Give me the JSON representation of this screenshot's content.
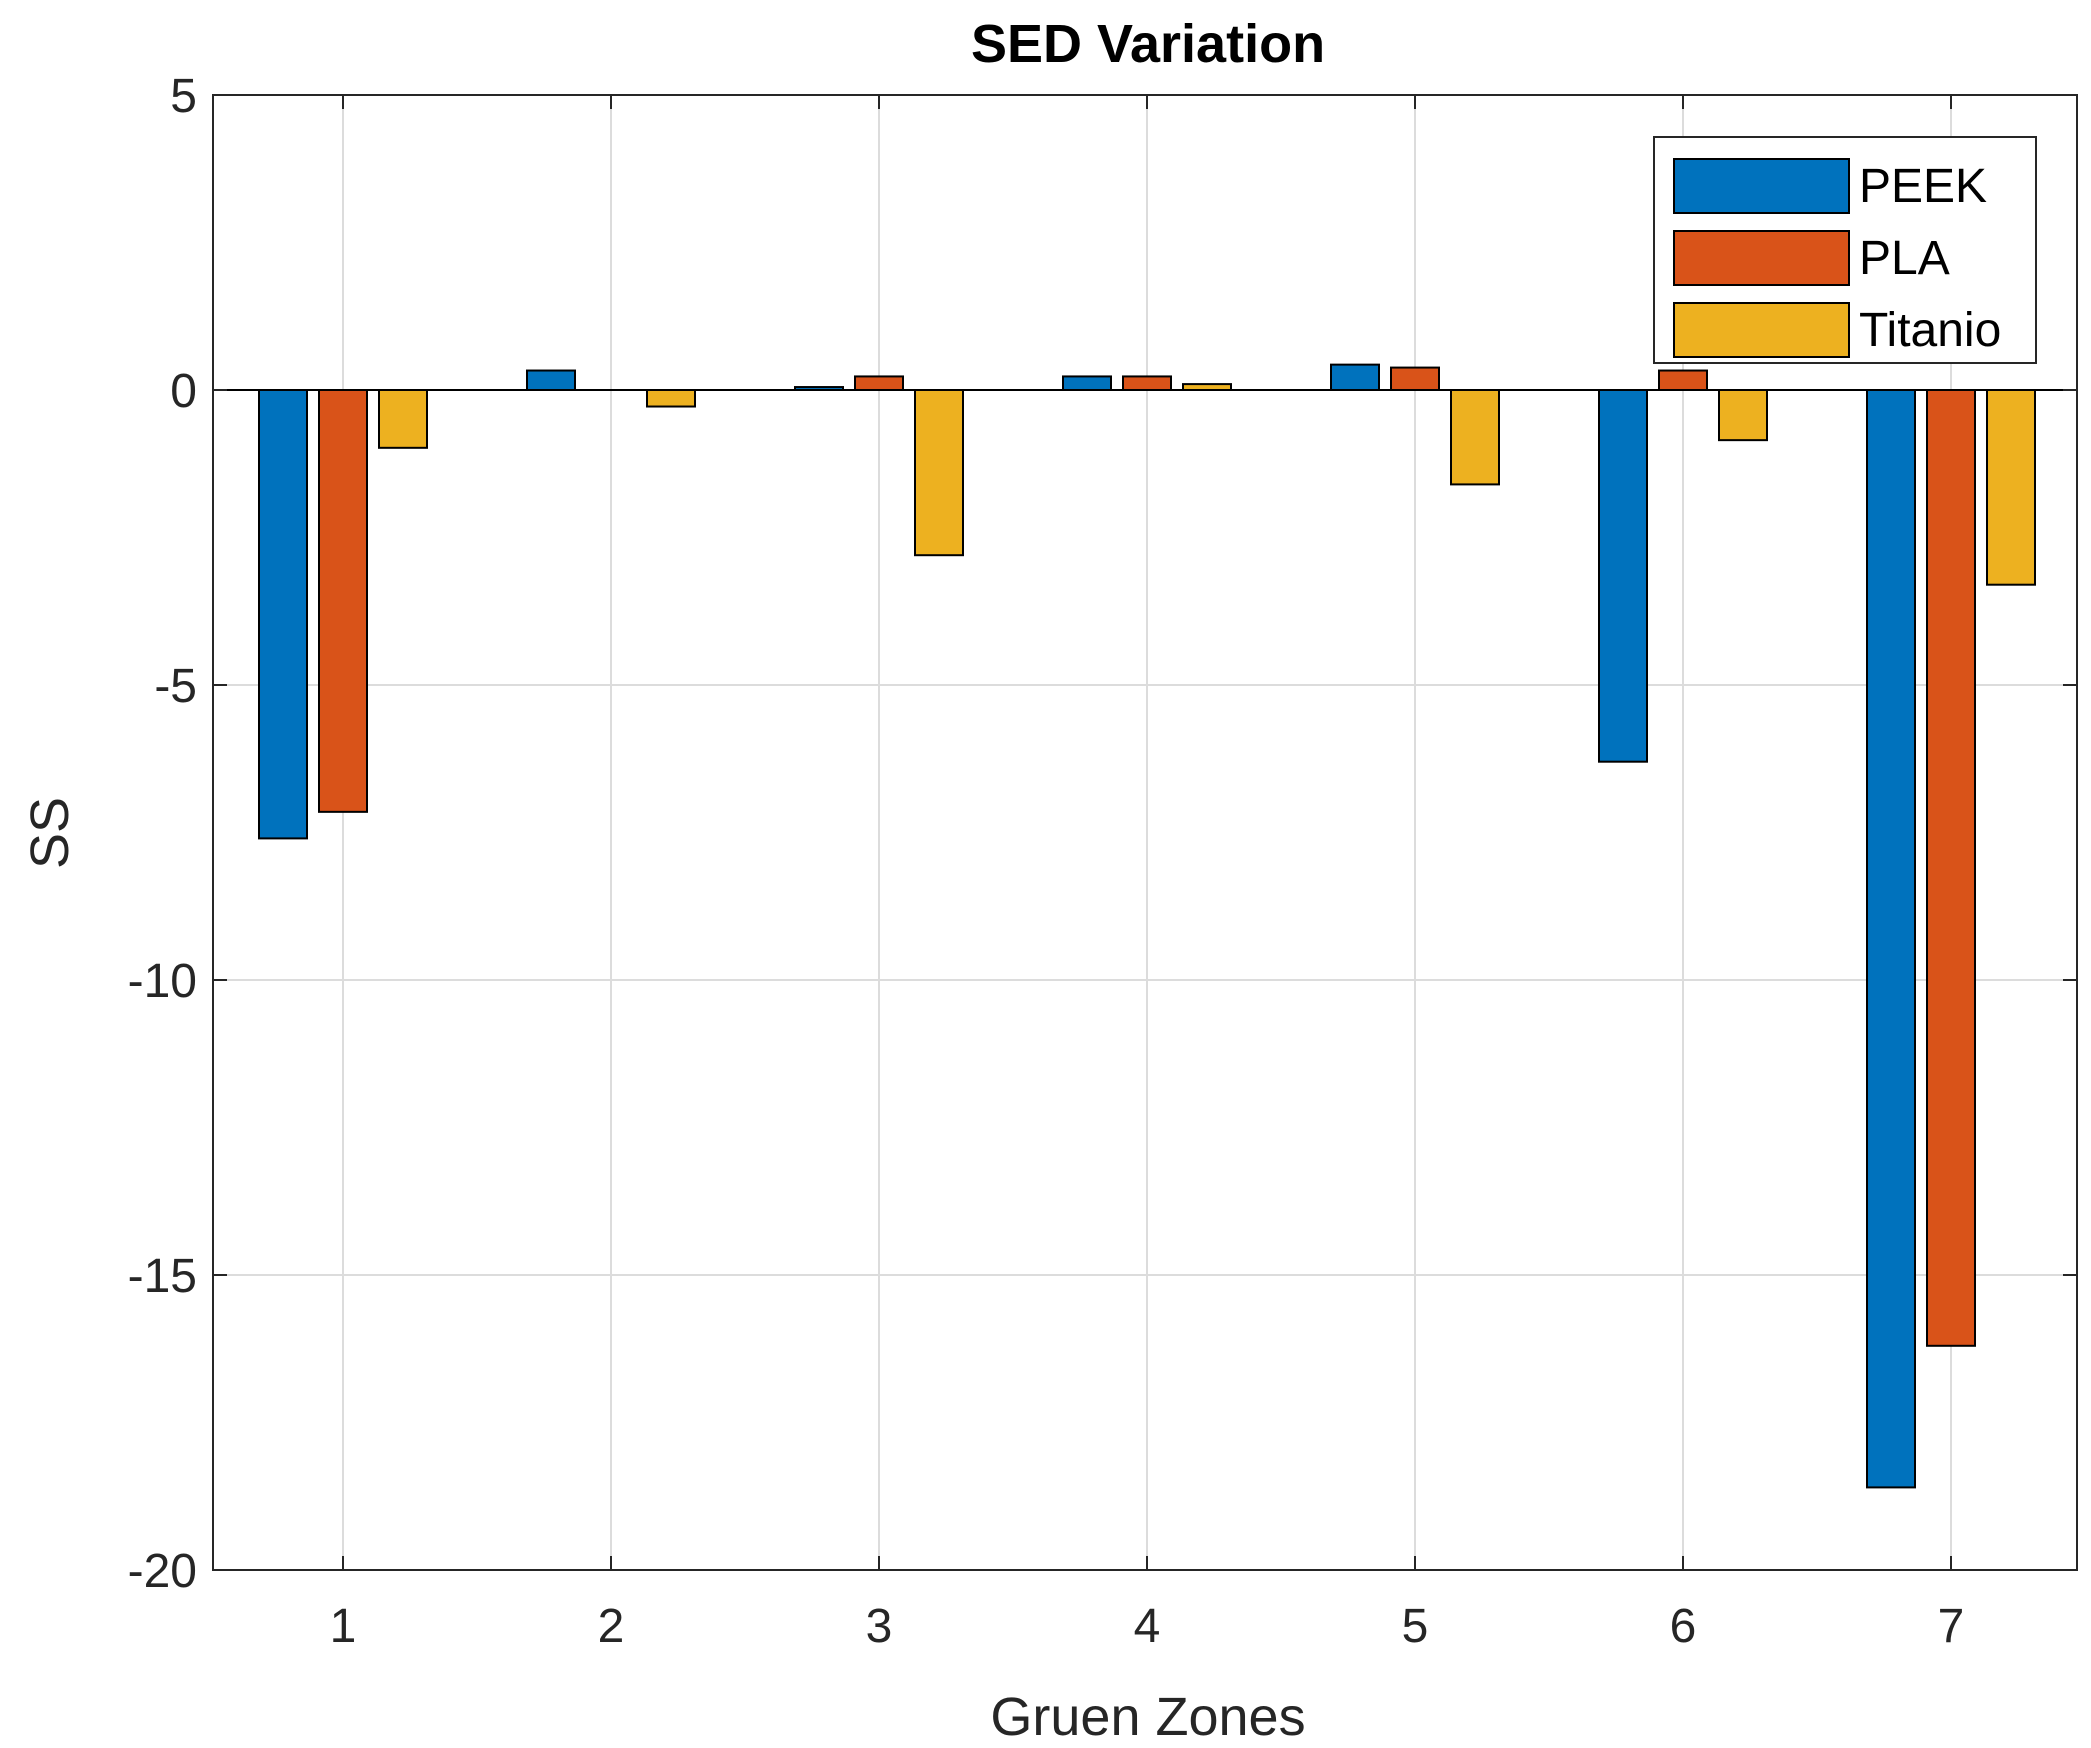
{
  "chart_data": {
    "type": "bar",
    "title": "SED Variation",
    "xlabel": "Gruen Zones",
    "ylabel": "SS",
    "categories": [
      "1",
      "2",
      "3",
      "4",
      "5",
      "6",
      "7"
    ],
    "ylim": [
      -20,
      5
    ],
    "yticks": [
      5,
      0,
      -5,
      -10,
      -15,
      -20
    ],
    "grid": true,
    "legend_position": "top-right",
    "series": [
      {
        "name": "PEEK",
        "color": "#0072BD",
        "values": [
          -7.6,
          0.33,
          0.05,
          0.23,
          0.43,
          -6.3,
          -18.6
        ]
      },
      {
        "name": "PLA",
        "color": "#D95319",
        "values": [
          -7.15,
          0.0,
          0.23,
          0.23,
          0.38,
          0.33,
          -16.2
        ]
      },
      {
        "name": "Titanio",
        "color": "#EDB120",
        "values": [
          -0.98,
          -0.28,
          -2.8,
          0.1,
          -1.6,
          -0.85,
          -3.3
        ]
      }
    ]
  }
}
